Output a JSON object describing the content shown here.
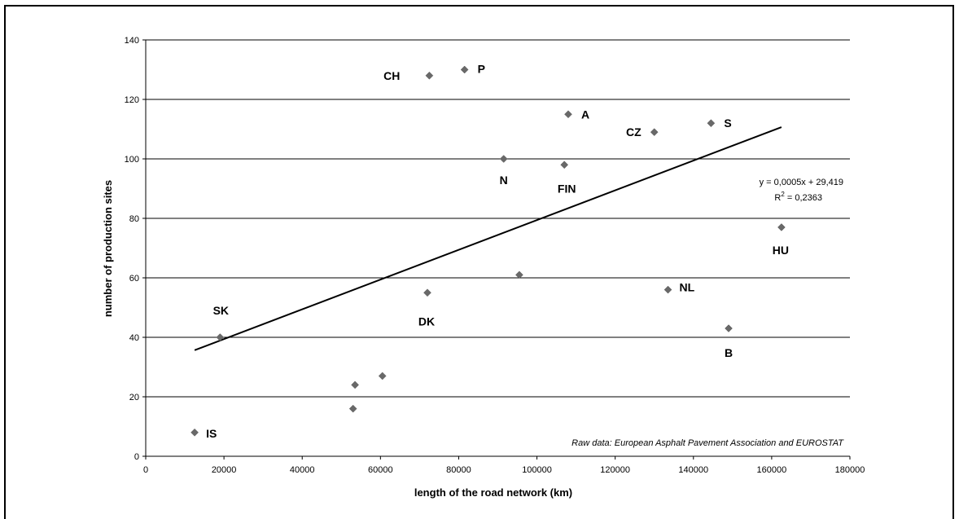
{
  "chart_data": {
    "type": "scatter",
    "title": "",
    "xlabel": "length of the road network (km)",
    "ylabel": "number of production sites",
    "xlim": [
      0,
      180000
    ],
    "ylim": [
      0,
      140
    ],
    "x_ticks": [
      0,
      20000,
      40000,
      60000,
      80000,
      100000,
      120000,
      140000,
      160000,
      180000
    ],
    "y_ticks": [
      0,
      20,
      40,
      60,
      80,
      100,
      120,
      140
    ],
    "grid": "horizontal",
    "marker_color": "#696969",
    "points": [
      {
        "label": "CH",
        "x": 72500,
        "y": 128
      },
      {
        "label": "P",
        "x": 81500,
        "y": 130
      },
      {
        "label": "A",
        "x": 108000,
        "y": 115
      },
      {
        "label": "CZ",
        "x": 130000,
        "y": 109
      },
      {
        "label": "S",
        "x": 144500,
        "y": 112
      },
      {
        "label": "N",
        "x": 91500,
        "y": 100
      },
      {
        "label": "FIN",
        "x": 107000,
        "y": 98
      },
      {
        "label": "HU",
        "x": 162500,
        "y": 77
      },
      {
        "label": "",
        "x": 95500,
        "y": 61
      },
      {
        "label": "DK",
        "x": 72000,
        "y": 55
      },
      {
        "label": "NL",
        "x": 133500,
        "y": 56
      },
      {
        "label": "B",
        "x": 149000,
        "y": 43
      },
      {
        "label": "SK",
        "x": 19000,
        "y": 40
      },
      {
        "label": "",
        "x": 60500,
        "y": 27
      },
      {
        "label": "",
        "x": 53500,
        "y": 24
      },
      {
        "label": "",
        "x": 53000,
        "y": 16
      },
      {
        "label": "IS",
        "x": 12500,
        "y": 8
      }
    ],
    "trendline": {
      "slope": 0.0005,
      "intercept": 29.419,
      "x_range": [
        12500,
        162500
      ],
      "equation": "y = 0,0005x + 29,419",
      "r2_prefix": "R",
      "r2_exponent": "2",
      "r2_value": " = 0,2363"
    },
    "annotation": "Raw data: European Asphalt Pavement Association and EUROSTAT"
  }
}
